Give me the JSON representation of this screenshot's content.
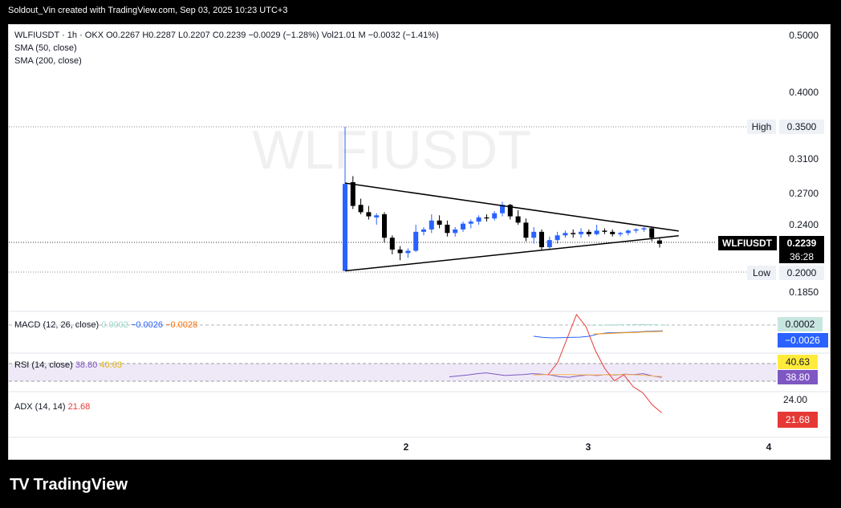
{
  "header": {
    "credit": "Soldout_Vin created with TradingView.com, Sep 03, 2025 10:23 UTC+3"
  },
  "legend": {
    "symbol_line": "WLFIUSDT · 1h · OKX  O0.2267  H0.2287  L0.2207  C0.2239  −0.0029 (−1.28%)  Vol21.01 M  −0.0032 (−1.41%)",
    "sma50": "SMA (50, close)",
    "sma200": "SMA (200, close)"
  },
  "watermark": "WLFIUSDT",
  "price_axis": {
    "labels": [
      "0.5000",
      "0.4000",
      "0.3500",
      "0.3100",
      "0.2700",
      "0.2400",
      "0.2000",
      "0.1850"
    ]
  },
  "markers": {
    "high_label": "High",
    "high_value": "0.3500",
    "low_label": "Low",
    "low_value": "0.2000",
    "symbol_tag": "WLFIUSDT",
    "last_price": "0.2239",
    "countdown": "36:28"
  },
  "time_axis": {
    "labels": [
      "2",
      "3",
      "4"
    ]
  },
  "macd": {
    "title": "MACD (12, 26, close)",
    "hist": "0.0002",
    "macd": "−0.0026",
    "signal": "−0.0028",
    "hist_tag": "0.0002",
    "macd_tag": "−0.0026"
  },
  "rsi": {
    "title": "RSI (14, close)",
    "value": "38.80",
    "ma": "40.63",
    "ma_tag": "40.63",
    "value_tag": "38.80"
  },
  "adx": {
    "title": "ADX (14, 14)",
    "value": "21.68",
    "level": "24.00",
    "value_tag": "21.68"
  },
  "brand": {
    "name": "TradingView",
    "logo": "TV"
  },
  "colors": {
    "up": "#2962ff",
    "down": "#000000",
    "adx": "#e53935",
    "rsi": "#7e57c2",
    "signal": "#ff9800"
  },
  "chart_data": {
    "type": "candlestick",
    "symbol": "WLFIUSDT",
    "interval": "1h",
    "exchange": "OKX",
    "ohlc_last": {
      "open": 0.2267,
      "high": 0.2287,
      "low": 0.2207,
      "close": 0.2239
    },
    "session_high": 0.35,
    "session_low": 0.2,
    "candles": [
      {
        "o": 0.201,
        "h": 0.35,
        "l": 0.201,
        "c": 0.281
      },
      {
        "o": 0.283,
        "h": 0.29,
        "l": 0.255,
        "c": 0.258
      },
      {
        "o": 0.259,
        "h": 0.265,
        "l": 0.25,
        "c": 0.252
      },
      {
        "o": 0.252,
        "h": 0.258,
        "l": 0.245,
        "c": 0.248
      },
      {
        "o": 0.247,
        "h": 0.251,
        "l": 0.24,
        "c": 0.249
      },
      {
        "o": 0.25,
        "h": 0.252,
        "l": 0.225,
        "c": 0.229
      },
      {
        "o": 0.229,
        "h": 0.231,
        "l": 0.215,
        "c": 0.219
      },
      {
        "o": 0.219,
        "h": 0.222,
        "l": 0.21,
        "c": 0.216
      },
      {
        "o": 0.216,
        "h": 0.22,
        "l": 0.212,
        "c": 0.218
      },
      {
        "o": 0.218,
        "h": 0.24,
        "l": 0.217,
        "c": 0.234
      },
      {
        "o": 0.234,
        "h": 0.238,
        "l": 0.231,
        "c": 0.236
      },
      {
        "o": 0.236,
        "h": 0.25,
        "l": 0.233,
        "c": 0.244
      },
      {
        "o": 0.244,
        "h": 0.249,
        "l": 0.237,
        "c": 0.24
      },
      {
        "o": 0.24,
        "h": 0.244,
        "l": 0.23,
        "c": 0.233
      },
      {
        "o": 0.233,
        "h": 0.238,
        "l": 0.23,
        "c": 0.236
      },
      {
        "o": 0.236,
        "h": 0.243,
        "l": 0.234,
        "c": 0.241
      },
      {
        "o": 0.241,
        "h": 0.245,
        "l": 0.237,
        "c": 0.243
      },
      {
        "o": 0.243,
        "h": 0.249,
        "l": 0.24,
        "c": 0.247
      },
      {
        "o": 0.247,
        "h": 0.25,
        "l": 0.243,
        "c": 0.246
      },
      {
        "o": 0.246,
        "h": 0.253,
        "l": 0.244,
        "c": 0.251
      },
      {
        "o": 0.251,
        "h": 0.262,
        "l": 0.248,
        "c": 0.259
      },
      {
        "o": 0.259,
        "h": 0.26,
        "l": 0.245,
        "c": 0.248
      },
      {
        "o": 0.248,
        "h": 0.254,
        "l": 0.24,
        "c": 0.242
      },
      {
        "o": 0.242,
        "h": 0.246,
        "l": 0.226,
        "c": 0.229
      },
      {
        "o": 0.229,
        "h": 0.238,
        "l": 0.224,
        "c": 0.234
      },
      {
        "o": 0.234,
        "h": 0.236,
        "l": 0.218,
        "c": 0.221
      },
      {
        "o": 0.221,
        "h": 0.23,
        "l": 0.219,
        "c": 0.227
      },
      {
        "o": 0.227,
        "h": 0.234,
        "l": 0.224,
        "c": 0.231
      },
      {
        "o": 0.231,
        "h": 0.235,
        "l": 0.229,
        "c": 0.233
      },
      {
        "o": 0.233,
        "h": 0.236,
        "l": 0.229,
        "c": 0.232
      },
      {
        "o": 0.232,
        "h": 0.237,
        "l": 0.229,
        "c": 0.234
      },
      {
        "o": 0.234,
        "h": 0.236,
        "l": 0.23,
        "c": 0.232
      },
      {
        "o": 0.232,
        "h": 0.24,
        "l": 0.231,
        "c": 0.235
      },
      {
        "o": 0.235,
        "h": 0.237,
        "l": 0.232,
        "c": 0.234
      },
      {
        "o": 0.234,
        "h": 0.236,
        "l": 0.23,
        "c": 0.232
      },
      {
        "o": 0.232,
        "h": 0.234,
        "l": 0.23,
        "c": 0.233
      },
      {
        "o": 0.233,
        "h": 0.236,
        "l": 0.231,
        "c": 0.235
      },
      {
        "o": 0.235,
        "h": 0.237,
        "l": 0.233,
        "c": 0.236
      },
      {
        "o": 0.236,
        "h": 0.238,
        "l": 0.234,
        "c": 0.237
      },
      {
        "o": 0.237,
        "h": 0.238,
        "l": 0.226,
        "c": 0.229
      },
      {
        "o": 0.2267,
        "h": 0.2287,
        "l": 0.2207,
        "c": 0.2239
      }
    ],
    "triangle": {
      "upper": [
        [
          0,
          0.282
        ],
        [
          41,
          0.234
        ]
      ],
      "lower": [
        [
          0,
          0.201
        ],
        [
          41,
          0.232
        ]
      ]
    },
    "price_ticks": [
      0.5,
      0.4,
      0.35,
      0.31,
      0.27,
      0.24,
      0.2,
      0.185
    ],
    "time_ticks": [
      "2",
      "3",
      "4"
    ],
    "macd": {
      "macd_line": [
        -0.005,
        -0.0055,
        -0.0057,
        -0.0056,
        -0.0055,
        -0.0054,
        -0.005,
        -0.004,
        -0.0035,
        -0.0034,
        -0.0033,
        -0.0031,
        -0.0029,
        -0.0027,
        -0.0026
      ],
      "signal_line": [
        -0.004,
        -0.0039,
        -0.0038,
        -0.0036,
        -0.0035,
        -0.0034,
        -0.0033,
        -0.0031,
        -0.003,
        -0.0029,
        -0.0028
      ],
      "histogram": [
        0.0001,
        0.0001,
        0.0002,
        0.0002,
        0.0003,
        0.0003,
        0.0004,
        0.0004,
        0.0003,
        0.0003,
        0.0002
      ]
    },
    "rsi": {
      "rsi_line": [
        40,
        42,
        44,
        47,
        49,
        46,
        43,
        44,
        45,
        47,
        46,
        44,
        40,
        39,
        42,
        44,
        43,
        45,
        44,
        46,
        45,
        47,
        42,
        38.8
      ],
      "rsi_ma": [
        44,
        45,
        45,
        45,
        44.5,
        44,
        44.5,
        45,
        45,
        44,
        42,
        40.63
      ],
      "levels": [
        70,
        30
      ]
    },
    "adx": {
      "adx_line": [
        28,
        30,
        34,
        38,
        36,
        32,
        29,
        27,
        28,
        26,
        25,
        23,
        21.68
      ],
      "level": 24
    }
  }
}
